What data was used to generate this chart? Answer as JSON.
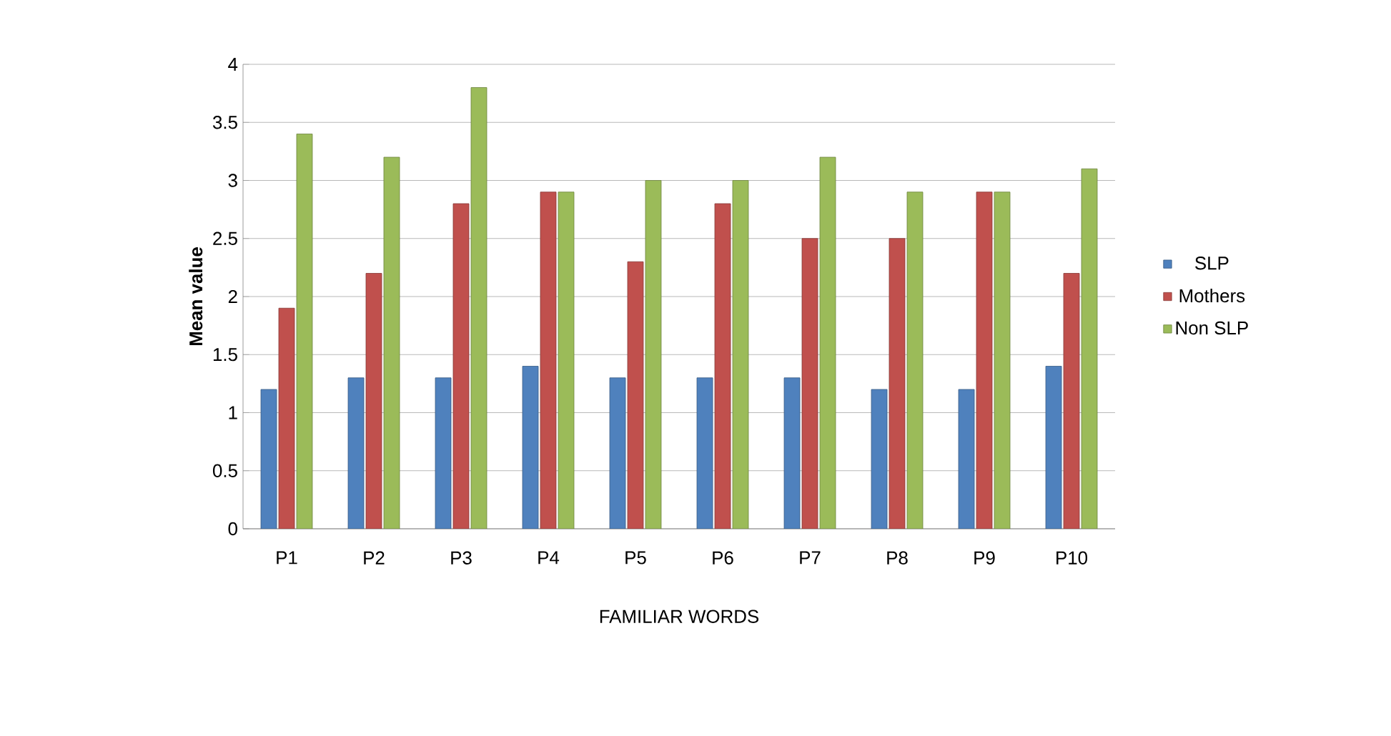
{
  "chart_data": {
    "type": "bar",
    "xlabel": "FAMILIAR WORDS",
    "ylabel": "Mean value",
    "categories": [
      "P1",
      "P2",
      "P3",
      "P4",
      "P5",
      "P6",
      "P7",
      "P8",
      "P9",
      "P10"
    ],
    "series": [
      {
        "name": "SLP",
        "color": "#4f81bd",
        "values": [
          1.2,
          1.3,
          1.3,
          1.4,
          1.3,
          1.3,
          1.3,
          1.2,
          1.2,
          1.4
        ]
      },
      {
        "name": "Mothers",
        "color": "#c0504d",
        "values": [
          1.9,
          2.2,
          2.8,
          2.9,
          2.3,
          2.8,
          2.5,
          2.5,
          2.9,
          2.2
        ]
      },
      {
        "name": "Non SLP",
        "color": "#9bbb59",
        "values": [
          3.4,
          3.2,
          3.8,
          2.9,
          3.0,
          3.0,
          3.2,
          2.9,
          2.9,
          3.1
        ]
      }
    ],
    "ylim": [
      0,
      4
    ],
    "yticks": [
      0,
      0.5,
      1,
      1.5,
      2,
      2.5,
      3,
      3.5,
      4
    ],
    "grid": "y",
    "legend": "right"
  }
}
